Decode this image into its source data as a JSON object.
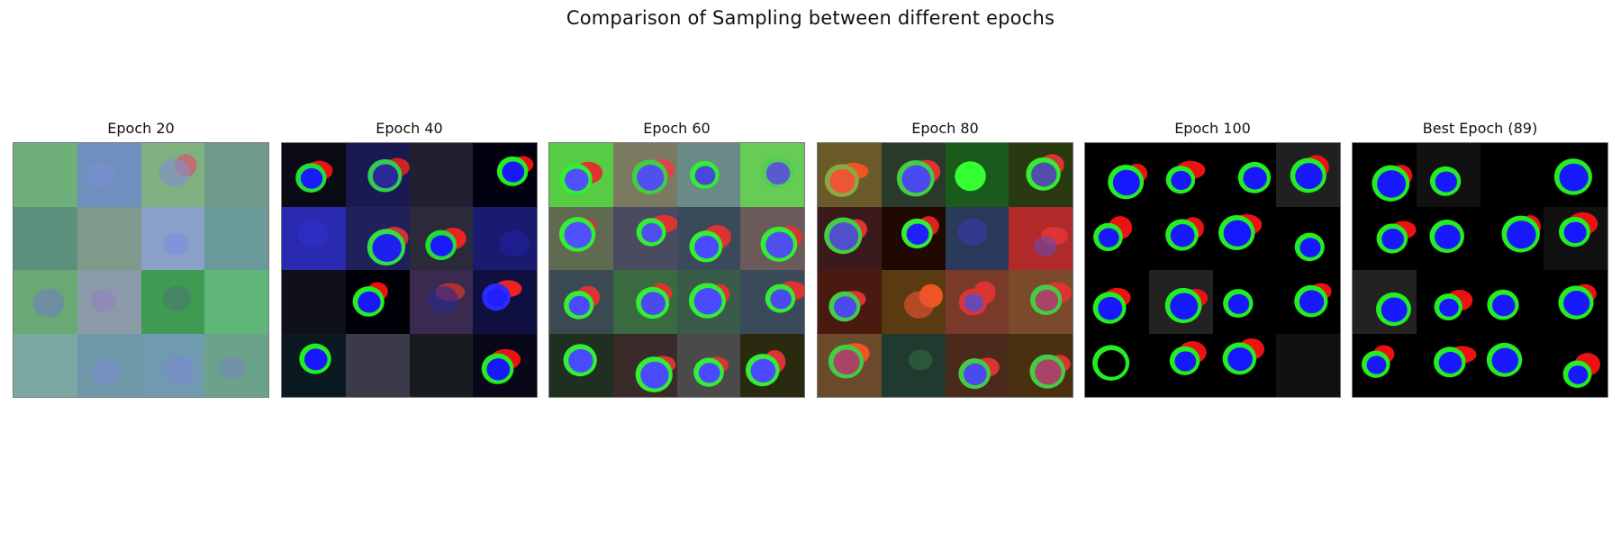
{
  "figure": {
    "title": "Comparison of Sampling between different epochs"
  },
  "panels": [
    {
      "title": "Epoch 20",
      "tiles": [
        {
          "bg": "#6fb07a"
        },
        {
          "bg": "#6f8fbf",
          "nucleus": "#7f8fd8"
        },
        {
          "bg": "#7fb080",
          "nucleus": "#8090d0",
          "cyto": "#c07070"
        },
        {
          "bg": "#6f9a8a"
        },
        {
          "bg": "#5d8f7d"
        },
        {
          "bg": "#7d9a8a"
        },
        {
          "bg": "#8aa0c8",
          "nucleus": "#7e8ce0"
        },
        {
          "bg": "#6a9a9a"
        },
        {
          "bg": "#6aa874",
          "nucleus": "#6f80c0"
        },
        {
          "bg": "#8a9aa8",
          "nucleus": "#9880c0"
        },
        {
          "bg": "#3f9a52",
          "nucleus": "#4f7a70"
        },
        {
          "bg": "#5fb678"
        },
        {
          "bg": "#7aa8a2"
        },
        {
          "bg": "#6f98a8",
          "nucleus": "#7a8cd0"
        },
        {
          "bg": "#6f9ab0",
          "nucleus": "#7a8cd0"
        },
        {
          "bg": "#6aa28a",
          "nucleus": "#7a84b8"
        }
      ]
    },
    {
      "title": "Epoch 40",
      "tiles": [
        {
          "bg": "#0a0a14",
          "ring": "#22dd33",
          "nucleus": "#1a1aff",
          "cyto": "#ee1111"
        },
        {
          "bg": "#1a1a50",
          "ring": "#33cc55",
          "nucleus": "#2a2a99",
          "cyto": "#cc2222"
        },
        {
          "bg": "#202030"
        },
        {
          "bg": "#000010",
          "ring": "#22ee22",
          "nucleus": "#1818ff",
          "cyto": "#ee1111"
        },
        {
          "bg": "#2a2ab0",
          "nucleus": "#3030d0"
        },
        {
          "bg": "#20205a",
          "ring": "#33dd44",
          "nucleus": "#2020ee",
          "cyto": "#cc3333"
        },
        {
          "bg": "#2a2a3a",
          "ring": "#22dd33",
          "nucleus": "#1a1aff",
          "cyto": "#ee2222"
        },
        {
          "bg": "#1a1a70",
          "nucleus": "#2020a0"
        },
        {
          "bg": "#101018"
        },
        {
          "bg": "#000008",
          "ring": "#22ee22",
          "nucleus": "#1818ff",
          "cyto": "#ee1111"
        },
        {
          "bg": "#3a2a50",
          "nucleus": "#2a2a90",
          "cyto": "#aa3333"
        },
        {
          "bg": "#101040",
          "ring": "#2a2aff",
          "nucleus": "#2020ff",
          "cyto": "#ee2222"
        },
        {
          "bg": "#0a1a20",
          "ring": "#22ee22",
          "nucleus": "#1818ff"
        },
        {
          "bg": "#3a3a48"
        },
        {
          "bg": "#181c20"
        },
        {
          "bg": "#080818",
          "ring": "#22ee22",
          "nucleus": "#1818ff",
          "cyto": "#ee1111"
        }
      ]
    },
    {
      "title": "Epoch 60",
      "tiles": [
        {
          "bg": "#55cc44",
          "ring": "#33ee33",
          "nucleus": "#5050ff",
          "cyto": "#dd3333"
        },
        {
          "bg": "#7a7a60",
          "ring": "#44cc44",
          "nucleus": "#5050ee",
          "cyto": "#dd4444"
        },
        {
          "bg": "#6a8a88",
          "ring": "#33ee33",
          "nucleus": "#4848dd"
        },
        {
          "bg": "#66cc55",
          "ring": "#55cc55",
          "nucleus": "#5a5ad0"
        },
        {
          "bg": "#606a50",
          "ring": "#33ee33",
          "nucleus": "#5050ff",
          "cyto": "#dd3333"
        },
        {
          "bg": "#4a4a60",
          "ring": "#33ee33",
          "nucleus": "#5050ee",
          "cyto": "#dd3333"
        },
        {
          "bg": "#3a4a5a",
          "ring": "#33ee33",
          "nucleus": "#4a4aff",
          "cyto": "#dd3333"
        },
        {
          "bg": "#6a5a5a",
          "ring": "#33ee33",
          "nucleus": "#5050ee",
          "cyto": "#dd3333"
        },
        {
          "bg": "#3a4a52",
          "ring": "#33ee33",
          "nucleus": "#4a4aff",
          "cyto": "#dd3333"
        },
        {
          "bg": "#3a6a40",
          "ring": "#33ee33",
          "nucleus": "#4a4aee",
          "cyto": "#dd3333"
        },
        {
          "bg": "#3a5a4a",
          "ring": "#33ee33",
          "nucleus": "#4a4aff",
          "cyto": "#dd3333"
        },
        {
          "bg": "#3a4a5a",
          "ring": "#33ee33",
          "nucleus": "#4a4aee",
          "cyto": "#dd3333"
        },
        {
          "bg": "#203020",
          "ring": "#33ee33",
          "nucleus": "#4a4aff"
        },
        {
          "bg": "#3a2a2a",
          "ring": "#33ee33",
          "nucleus": "#4a4aff",
          "cyto": "#dd3333"
        },
        {
          "bg": "#4a4a4a",
          "ring": "#33ee33",
          "nucleus": "#4a4aff",
          "cyto": "#dd3333"
        },
        {
          "bg": "#2a2a10",
          "ring": "#33ee33",
          "nucleus": "#4a4aff",
          "cyto": "#dd3333"
        }
      ]
    },
    {
      "title": "Epoch 80",
      "tiles": [
        {
          "bg": "#6a5a2a",
          "ring": "#88aa44",
          "nucleus": "#ee5533",
          "cyto": "#ee5522"
        },
        {
          "bg": "#2a3a2a",
          "ring": "#44cc44",
          "nucleus": "#4a4aee",
          "cyto": "#dd3333"
        },
        {
          "bg": "#1a5a1a",
          "ring": "#33ff33",
          "nucleus": "#33ff33"
        },
        {
          "bg": "#2a3a10",
          "ring": "#33ee33",
          "nucleus": "#5050aa",
          "cyto": "#dd3333"
        },
        {
          "bg": "#3a1a1a",
          "ring": "#44cc44",
          "nucleus": "#5050cc",
          "cyto": "#dd3333"
        },
        {
          "bg": "#200a00",
          "ring": "#33ee33",
          "nucleus": "#2020ff",
          "cyto": "#dd2222"
        },
        {
          "bg": "#2a3a5a",
          "nucleus": "#3a3ab0"
        },
        {
          "bg": "#b02a2a",
          "nucleus": "#6a4ab0",
          "cyto": "#dd3333"
        },
        {
          "bg": "#4a1a10",
          "ring": "#44cc44",
          "nucleus": "#4a4aee",
          "cyto": "#dd3333"
        },
        {
          "bg": "#5a3a10",
          "nucleus": "#ee5533",
          "cyto": "#ee5522"
        },
        {
          "bg": "#7a3a2a",
          "ring": "#dd3333",
          "nucleus": "#6a4ab0",
          "cyto": "#dd3333"
        },
        {
          "bg": "#7a4a2a",
          "ring": "#44cc44",
          "nucleus": "#aa4466",
          "cyto": "#dd3333"
        },
        {
          "bg": "#6a4a2a",
          "ring": "#44cc44",
          "nucleus": "#aa4466",
          "cyto": "#ee5522"
        },
        {
          "bg": "#203a30",
          "nucleus": "#306a40"
        },
        {
          "bg": "#4a2a1a",
          "ring": "#44cc44",
          "nucleus": "#4a4aee",
          "cyto": "#dd3333"
        },
        {
          "bg": "#4a3010",
          "ring": "#44cc44",
          "nucleus": "#aa4466",
          "cyto": "#dd3333"
        }
      ]
    },
    {
      "title": "Epoch 100",
      "tiles": [
        {
          "bg": "#000000",
          "ring": "#22ee22",
          "nucleus": "#1818ff",
          "cyto": "#ee1111"
        },
        {
          "bg": "#000000",
          "ring": "#22ee22",
          "nucleus": "#1818ff",
          "cyto": "#ee1111"
        },
        {
          "bg": "#000000",
          "ring": "#22ee22",
          "nucleus": "#1818ff"
        },
        {
          "bg": "#202020",
          "ring": "#22ee22",
          "nucleus": "#1818ff",
          "cyto": "#ee1111"
        },
        {
          "bg": "#000000",
          "ring": "#22ee22",
          "nucleus": "#1818ff",
          "cyto": "#ee1111"
        },
        {
          "bg": "#000000",
          "ring": "#22ee22",
          "nucleus": "#1818ff",
          "cyto": "#ee1111"
        },
        {
          "bg": "#000000",
          "ring": "#22ee22",
          "nucleus": "#1818ff",
          "cyto": "#ee1111"
        },
        {
          "bg": "#000000",
          "ring": "#22ee22",
          "nucleus": "#1818ff"
        },
        {
          "bg": "#000000",
          "ring": "#22ee22",
          "nucleus": "#1818ff",
          "cyto": "#ee1111"
        },
        {
          "bg": "#222222",
          "ring": "#22ee22",
          "nucleus": "#1818ff",
          "cyto": "#ee1111"
        },
        {
          "bg": "#000000",
          "ring": "#22ee22",
          "nucleus": "#1818ff"
        },
        {
          "bg": "#000000",
          "ring": "#22ee22",
          "nucleus": "#1818ff",
          "cyto": "#ee1111"
        },
        {
          "bg": "#000000",
          "ring": "#22ee22",
          "nucleus": "#000000"
        },
        {
          "bg": "#000000",
          "ring": "#22ee22",
          "nucleus": "#1818ff",
          "cyto": "#ee1111"
        },
        {
          "bg": "#000000",
          "ring": "#22ee22",
          "nucleus": "#1818ff",
          "cyto": "#ee1111"
        },
        {
          "bg": "#111111"
        }
      ]
    },
    {
      "title": "Best Epoch (89)",
      "tiles": [
        {
          "bg": "#000000",
          "ring": "#22ee22",
          "nucleus": "#1818ff",
          "cyto": "#ee1111"
        },
        {
          "bg": "#111111",
          "ring": "#22ee22",
          "nucleus": "#1818ff"
        },
        {
          "bg": "#000000"
        },
        {
          "bg": "#000000",
          "ring": "#22ee22",
          "nucleus": "#1818ff"
        },
        {
          "bg": "#000000",
          "ring": "#22ee22",
          "nucleus": "#1818ff",
          "cyto": "#ee1111"
        },
        {
          "bg": "#000000",
          "ring": "#22ee22",
          "nucleus": "#1818ff"
        },
        {
          "bg": "#000000",
          "ring": "#22ee22",
          "nucleus": "#1818ff",
          "cyto": "#ee1111"
        },
        {
          "bg": "#111111",
          "ring": "#22ee22",
          "nucleus": "#1818ff",
          "cyto": "#ee1111"
        },
        {
          "bg": "#222222",
          "ring": "#22ee22",
          "nucleus": "#1818ff"
        },
        {
          "bg": "#000000",
          "ring": "#22ee22",
          "nucleus": "#1818ff",
          "cyto": "#ee1111"
        },
        {
          "bg": "#000000",
          "ring": "#22ee22",
          "nucleus": "#1818ff"
        },
        {
          "bg": "#000000",
          "ring": "#22ee22",
          "nucleus": "#1818ff",
          "cyto": "#ee1111"
        },
        {
          "bg": "#000000",
          "ring": "#22ee22",
          "nucleus": "#1818ff",
          "cyto": "#ee1111"
        },
        {
          "bg": "#000000",
          "ring": "#22ee22",
          "nucleus": "#1818ff",
          "cyto": "#ee1111"
        },
        {
          "bg": "#000000",
          "ring": "#22ee22",
          "nucleus": "#1818ff"
        },
        {
          "bg": "#000000",
          "ring": "#22ee22",
          "nucleus": "#1818ff",
          "cyto": "#ee1111"
        }
      ]
    }
  ]
}
